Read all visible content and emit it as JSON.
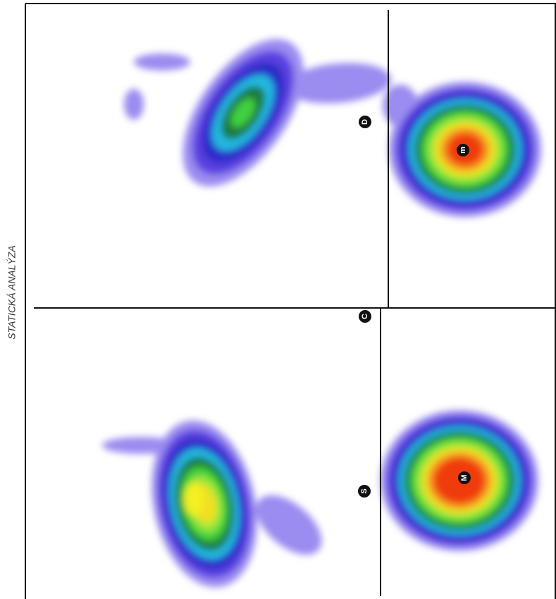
{
  "side_label": "STATICKÁ ANALÝZA",
  "markers": [
    {
      "label": "D"
    },
    {
      "label": "m"
    },
    {
      "label": "C"
    },
    {
      "label": "S"
    },
    {
      "label": "M"
    }
  ]
}
